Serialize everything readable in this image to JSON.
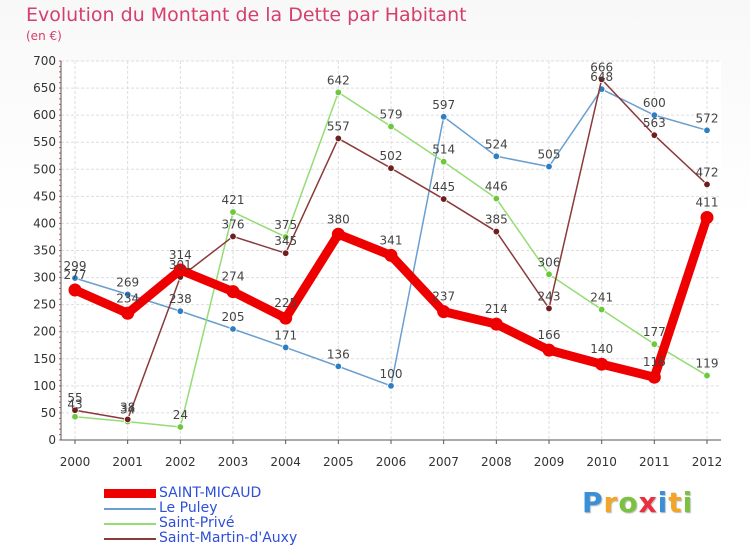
{
  "header": {
    "title": "Evolution du Montant de la Dette par Habitant",
    "subtitle": "(en €)"
  },
  "logo": {
    "text": "Proxiti",
    "colors": [
      "#3a8fd9",
      "#f2a527",
      "#7bc142",
      "#e8303f",
      "#3a8fd9",
      "#f2a527",
      "#7bc142"
    ]
  },
  "chart_data": {
    "type": "line",
    "title": "Evolution du Montant de la Dette par Habitant",
    "subtitle": "(en €)",
    "xlabel": "",
    "ylabel": "",
    "x": [
      "2000",
      "2001",
      "2002",
      "2003",
      "2004",
      "2005",
      "2006",
      "2007",
      "2008",
      "2009",
      "2010",
      "2011",
      "2012"
    ],
    "ylim": [
      0,
      700
    ],
    "yticks": [
      0,
      50,
      100,
      150,
      200,
      250,
      300,
      350,
      400,
      450,
      500,
      550,
      600,
      650,
      700
    ],
    "grid": true,
    "legend_position": "bottom-left",
    "series": [
      {
        "name": "SAINT-MICAUD",
        "color": "#ee0000",
        "marker_color": "#ee0000",
        "thick": true,
        "values": [
          277,
          234,
          314,
          274,
          225,
          380,
          341,
          237,
          214,
          166,
          140,
          116,
          411
        ],
        "labels": [
          "277",
          "234",
          "314",
          "274",
          "225",
          "380",
          "341",
          "237",
          "214",
          "166",
          "140",
          "116",
          "411"
        ]
      },
      {
        "name": "Le Puley",
        "color": "#6a9fcf",
        "marker_color": "#2d7ec4",
        "thick": false,
        "values": [
          299,
          269,
          238,
          205,
          171,
          136,
          100,
          597,
          524,
          505,
          648,
          600,
          572
        ],
        "labels": [
          "299",
          "269",
          "238",
          "205",
          "171",
          "136",
          "100",
          "597",
          "524",
          "505",
          "648",
          "600",
          "572"
        ]
      },
      {
        "name": "Saint-Privé",
        "color": "#94dc74",
        "marker_color": "#6cc83c",
        "thick": false,
        "values": [
          43,
          34,
          24,
          421,
          375,
          642,
          579,
          514,
          446,
          306,
          241,
          177,
          119
        ],
        "labels": [
          "43",
          "34",
          "24",
          "421",
          "375",
          "642",
          "579",
          "514",
          "446",
          "306",
          "241",
          "177",
          "119"
        ]
      },
      {
        "name": "Saint-Martin-d'Auxy",
        "color": "#8a3a3a",
        "marker_color": "#6e1e1e",
        "thick": false,
        "values": [
          55,
          38,
          301,
          376,
          345,
          557,
          502,
          445,
          385,
          243,
          666,
          563,
          472
        ],
        "labels": [
          "55",
          "38",
          "301",
          "376",
          "345",
          "557",
          "502",
          "445",
          "385",
          "243",
          "666",
          "563",
          "472"
        ]
      }
    ]
  }
}
